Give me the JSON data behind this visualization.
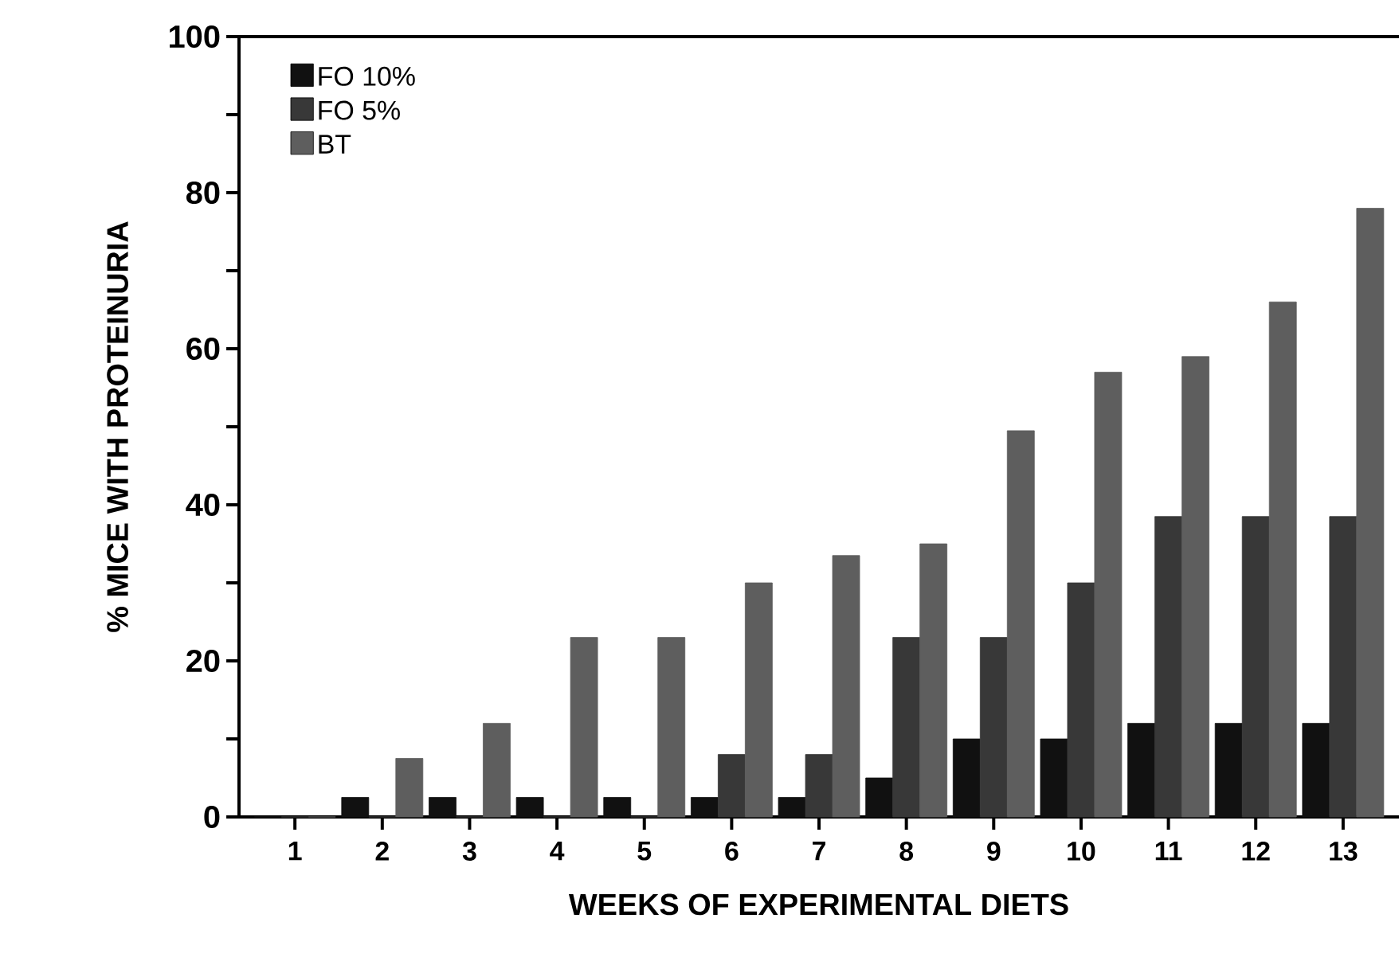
{
  "chart_data": {
    "type": "bar",
    "xlabel": "WEEKS OF EXPERIMENTAL DIETS",
    "ylabel": "% MICE WITH PROTEINURIA",
    "categories": [
      "1",
      "2",
      "3",
      "4",
      "5",
      "6",
      "7",
      "8",
      "9",
      "10",
      "11",
      "12",
      "13"
    ],
    "series": [
      {
        "name": "FO 10%",
        "color": "#111111",
        "values": [
          0,
          2.5,
          2.5,
          2.5,
          2.5,
          2.5,
          2.5,
          5,
          10,
          10,
          12,
          12,
          12
        ]
      },
      {
        "name": "FO 5%",
        "color": "#383838",
        "values": [
          0,
          0,
          0,
          0,
          0,
          8,
          8,
          23,
          23,
          30,
          38.5,
          38.5,
          38.5
        ]
      },
      {
        "name": "BT",
        "color": "#5e5e5e",
        "values": [
          0,
          7.5,
          12,
          23,
          23,
          30,
          33.5,
          35,
          49.5,
          57,
          59,
          66,
          78
        ]
      }
    ],
    "ylim": [
      0,
      100
    ],
    "yticks": [
      0,
      {
        "value": 10,
        "label": null
      },
      20,
      {
        "value": 30,
        "label": null
      },
      40,
      {
        "value": 50,
        "label": null
      },
      60,
      {
        "value": 70,
        "label": null
      },
      80,
      {
        "value": 90,
        "label": null
      },
      100
    ],
    "legend": "top left",
    "grid": false
  }
}
